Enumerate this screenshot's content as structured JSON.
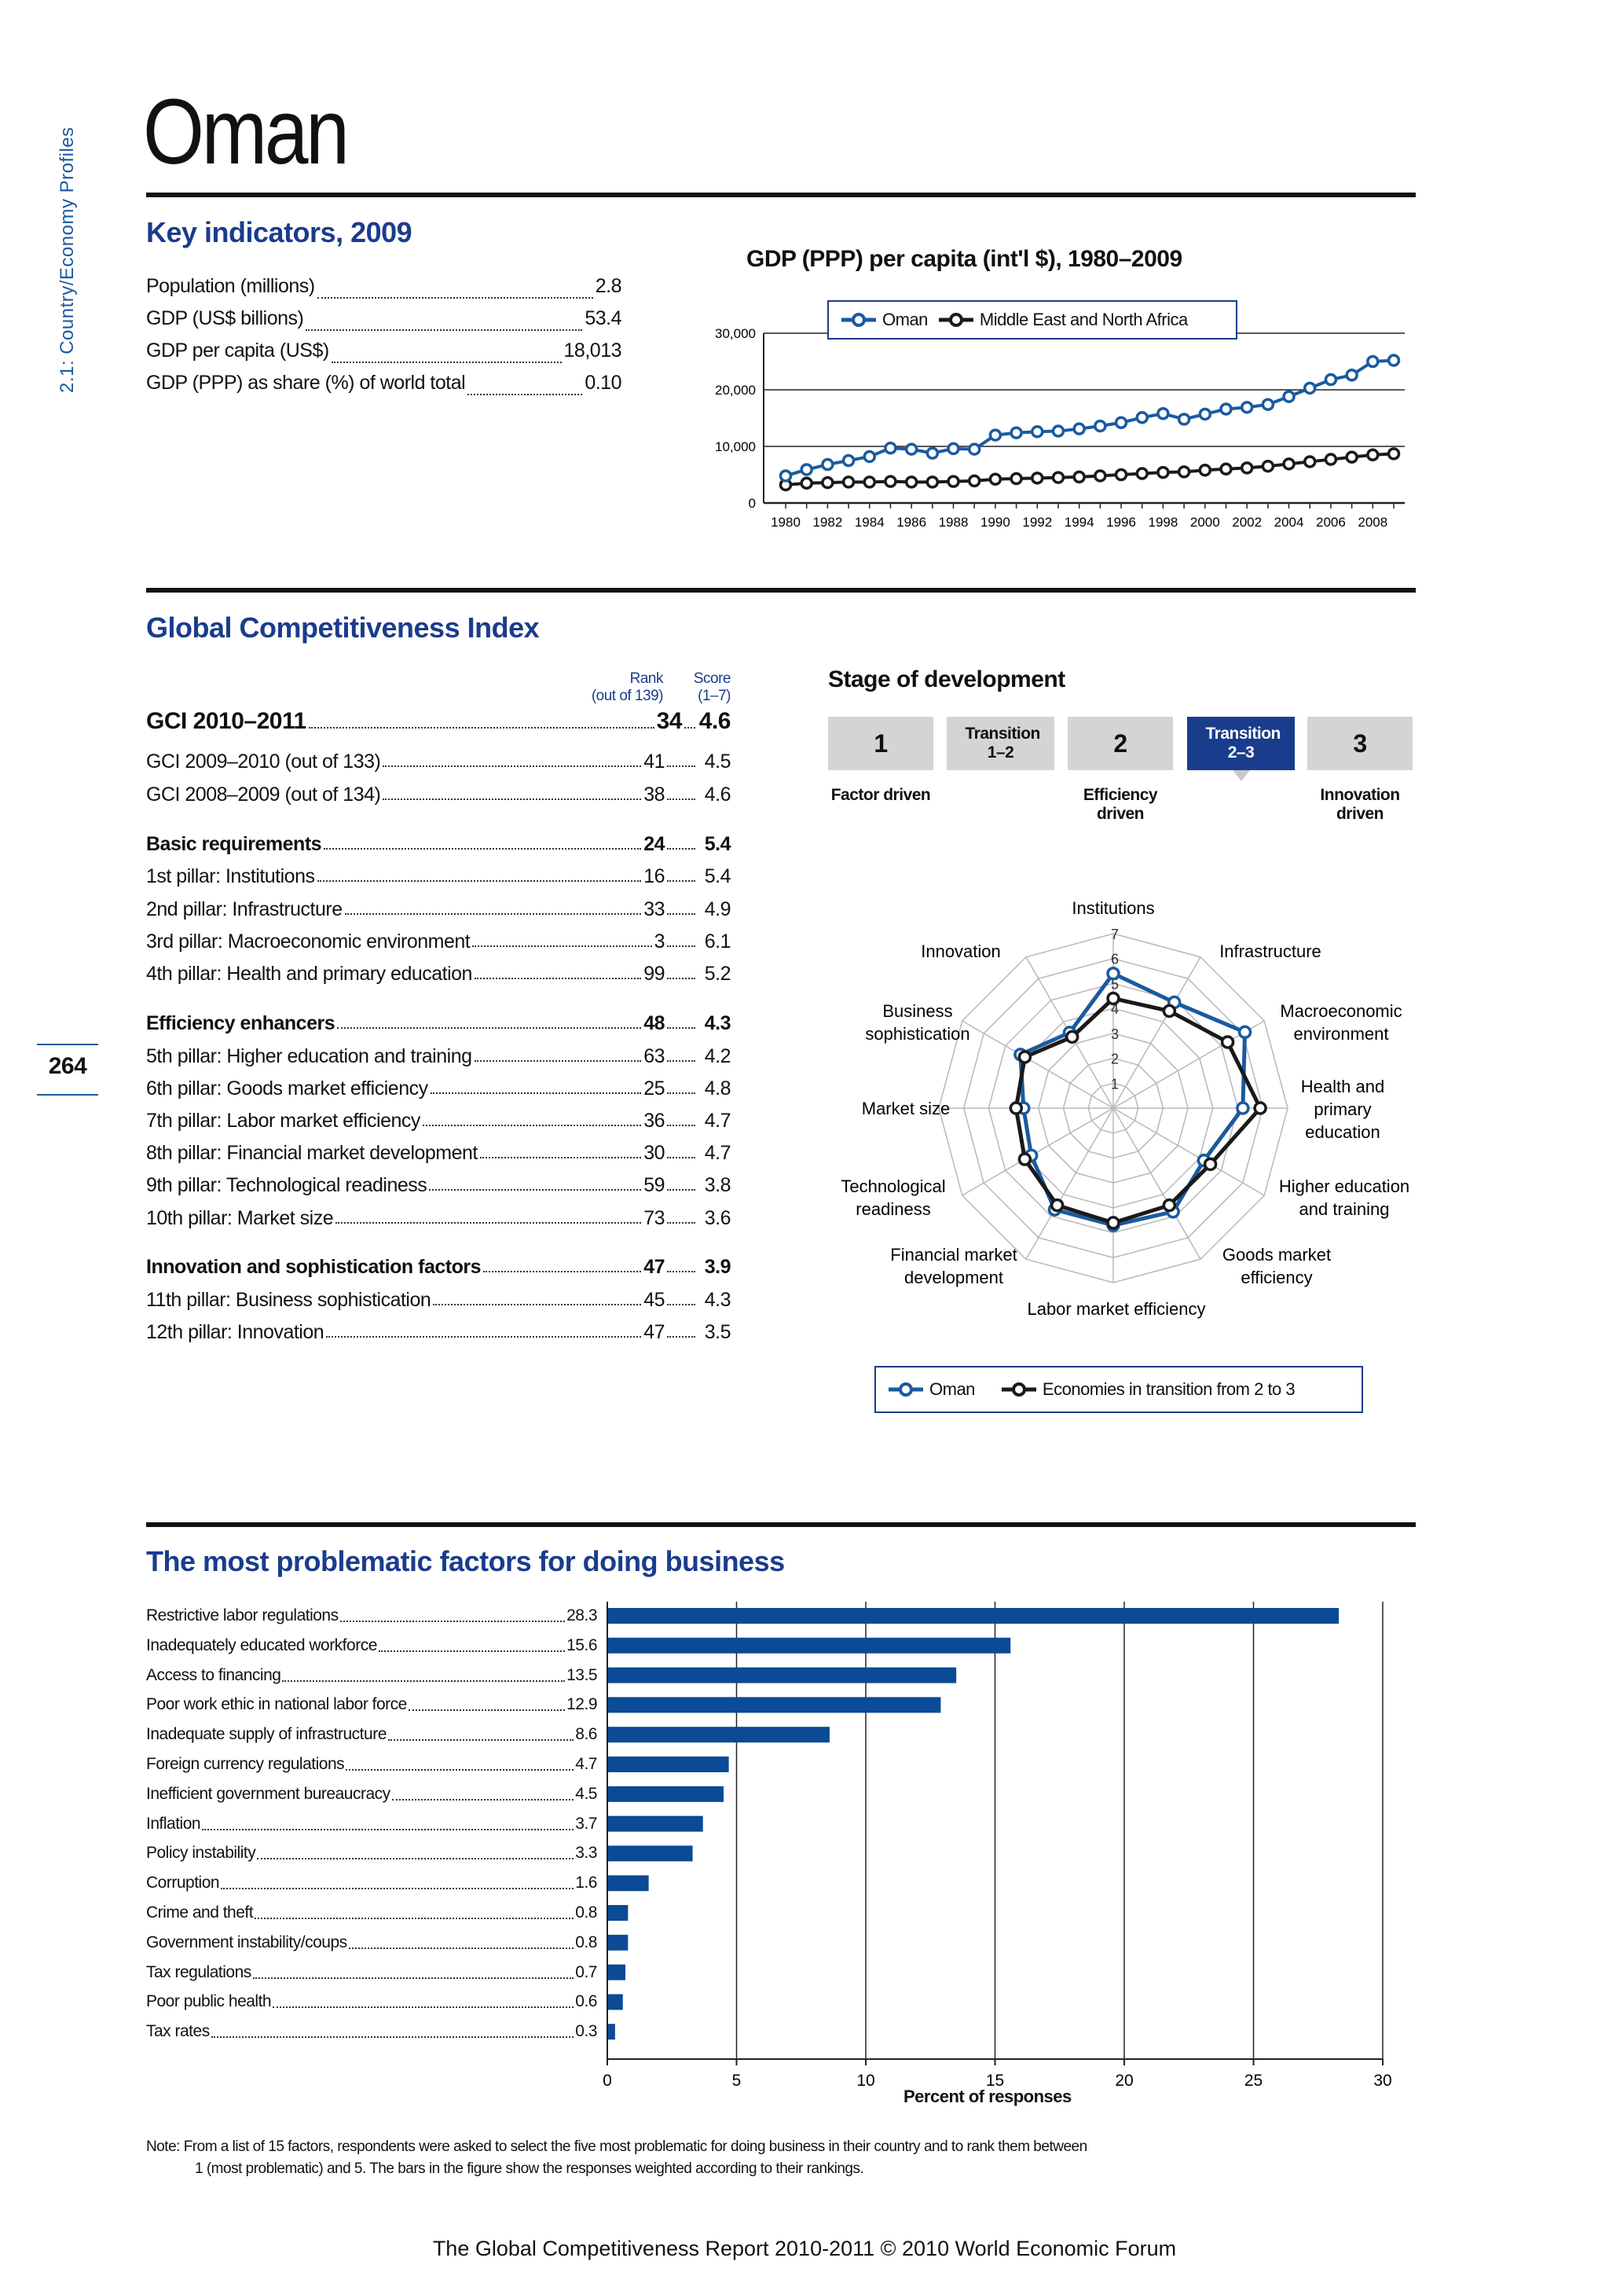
{
  "side_label": "2.1: Country/Economy Profiles",
  "page_number": "264",
  "country": "Oman",
  "key_indicators": {
    "title": "Key indicators, 2009",
    "rows": [
      {
        "label": "Population (millions)",
        "value": "2.8"
      },
      {
        "label": "GDP (US$ billions)",
        "value": "53.4"
      },
      {
        "label": "GDP per capita (US$)",
        "value": "18,013"
      },
      {
        "label": "GDP (PPP) as share (%) of world total",
        "value": "0.10"
      }
    ]
  },
  "gdp_chart_title": "GDP (PPP) per capita (int'l $), 1980–2009",
  "gdp_legend": [
    "Oman",
    "Middle East and North Africa"
  ],
  "gci": {
    "title": "Global Competitiveness Index",
    "rank_header": [
      "Rank",
      "(out of 139)"
    ],
    "score_header": [
      "Score",
      "(1–7)"
    ],
    "rows": [
      {
        "label": "GCI 2010–2011",
        "rank": "34",
        "score": "4.6",
        "style": "main"
      },
      {
        "label": "GCI 2009–2010 (out of 133)",
        "rank": "41",
        "score": "4.5",
        "style": "normal"
      },
      {
        "label": "GCI 2008–2009 (out of 134)",
        "rank": "38",
        "score": "4.6",
        "style": "normal"
      },
      {
        "label": "Basic requirements",
        "rank": "24",
        "score": "5.4",
        "style": "bold"
      },
      {
        "label": "1st pillar: Institutions",
        "rank": "16",
        "score": "5.4",
        "style": "normal"
      },
      {
        "label": "2nd pillar: Infrastructure",
        "rank": "33",
        "score": "4.9",
        "style": "normal"
      },
      {
        "label": "3rd pillar: Macroeconomic environment",
        "rank": "3",
        "score": "6.1",
        "style": "normal"
      },
      {
        "label": "4th pillar: Health and primary education",
        "rank": "99",
        "score": "5.2",
        "style": "normal"
      },
      {
        "label": "Efficiency enhancers",
        "rank": "48",
        "score": "4.3",
        "style": "bold"
      },
      {
        "label": "5th pillar: Higher education and training",
        "rank": "63",
        "score": "4.2",
        "style": "normal"
      },
      {
        "label": "6th pillar: Goods market efficiency",
        "rank": "25",
        "score": "4.8",
        "style": "normal"
      },
      {
        "label": "7th pillar: Labor market efficiency",
        "rank": "36",
        "score": "4.7",
        "style": "normal"
      },
      {
        "label": "8th pillar: Financial market development",
        "rank": "30",
        "score": "4.7",
        "style": "normal"
      },
      {
        "label": "9th pillar: Technological readiness",
        "rank": "59",
        "score": "3.8",
        "style": "normal"
      },
      {
        "label": "10th pillar: Market size",
        "rank": "73",
        "score": "3.6",
        "style": "normal"
      },
      {
        "label": "Innovation and sophistication factors",
        "rank": "47",
        "score": "3.9",
        "style": "bold"
      },
      {
        "label": "11th pillar: Business sophistication",
        "rank": "45",
        "score": "4.3",
        "style": "normal"
      },
      {
        "label": "12th pillar: Innovation",
        "rank": "47",
        "score": "3.5",
        "style": "normal"
      }
    ]
  },
  "stage": {
    "title": "Stage of development",
    "boxes": [
      "1",
      "Transition 1–2",
      "2",
      "Transition 2–3",
      "3"
    ],
    "active_index": 3,
    "labels": [
      "Factor driven",
      "Efficiency driven",
      "Innovation driven"
    ]
  },
  "radar_legend": [
    "Oman",
    "Economies in transition from 2 to 3"
  ],
  "problems": {
    "title": "The most problematic factors for doing business",
    "xlabel": "Percent of responses",
    "note_lines": [
      "Note:  From a list of 15 factors, respondents were asked to select the five most problematic for doing business in their country and to rank them between",
      "1 (most problematic) and 5. The bars in the figure show the responses weighted according to their rankings."
    ]
  },
  "footer": "The Global Competitiveness Report 2010-2011 © 2010 World Economic Forum",
  "colors": {
    "oman": "#1a5aa0",
    "comparison": "#1a1a1a",
    "bar": "#0a4a96",
    "heading": "#1a3c8c"
  },
  "chart_data": [
    {
      "type": "line",
      "title": "GDP (PPP) per capita (int'l $), 1980–2009",
      "x": [
        1980,
        1981,
        1982,
        1983,
        1984,
        1985,
        1986,
        1987,
        1988,
        1989,
        1990,
        1991,
        1992,
        1993,
        1994,
        1995,
        1996,
        1997,
        1998,
        1999,
        2000,
        2001,
        2002,
        2003,
        2004,
        2005,
        2006,
        2007,
        2008,
        2009
      ],
      "x_tick_labels": [
        "1980",
        "1982",
        "1984",
        "1986",
        "1988",
        "1990",
        "1992",
        "1994",
        "1996",
        "1998",
        "2000",
        "2002",
        "2004",
        "2006",
        "2008"
      ],
      "y_tick_labels": [
        "0",
        "10,000",
        "20,000",
        "30,000"
      ],
      "ylim": [
        0,
        30000
      ],
      "series": [
        {
          "name": "Oman",
          "values": [
            4800,
            5900,
            6800,
            7500,
            8200,
            9700,
            9500,
            8800,
            9600,
            9500,
            12000,
            12400,
            12600,
            12700,
            13100,
            13600,
            14200,
            15100,
            15800,
            14800,
            15700,
            16600,
            16900,
            17400,
            18800,
            20300,
            21800,
            22600,
            25000,
            25200
          ]
        },
        {
          "name": "Middle East and North Africa",
          "values": [
            3200,
            3500,
            3600,
            3700,
            3700,
            3800,
            3700,
            3700,
            3800,
            3900,
            4200,
            4300,
            4400,
            4500,
            4600,
            4800,
            5000,
            5200,
            5400,
            5500,
            5800,
            6000,
            6200,
            6500,
            6900,
            7300,
            7700,
            8100,
            8500,
            8700
          ]
        }
      ]
    },
    {
      "type": "radar",
      "axes": [
        "Institutions",
        "Infrastructure",
        "Macroeconomic environment",
        "Health and primary education",
        "Higher education and training",
        "Goods market efficiency",
        "Labor market efficiency",
        "Financial market development",
        "Technological readiness",
        "Market size",
        "Business sophistication",
        "Innovation"
      ],
      "axis_label_lines": [
        [
          "Institutions"
        ],
        [
          "Infrastructure"
        ],
        [
          "Macroeconomic",
          "environment"
        ],
        [
          "Health and",
          "primary",
          "education"
        ],
        [
          "Higher education",
          "and training"
        ],
        [
          "Goods market",
          "efficiency"
        ],
        [
          "Labor market efficiency"
        ],
        [
          "Financial market",
          "development"
        ],
        [
          "Technological",
          "readiness"
        ],
        [
          "Market size"
        ],
        [
          "Business",
          "sophistication"
        ],
        [
          "Innovation"
        ]
      ],
      "scale_labels": [
        "1",
        "2",
        "3",
        "4",
        "5",
        "6",
        "7"
      ],
      "range": [
        1,
        7
      ],
      "series": [
        {
          "name": "Oman",
          "values": [
            5.4,
            4.9,
            6.1,
            5.2,
            4.2,
            4.8,
            4.7,
            4.7,
            3.8,
            3.6,
            4.3,
            3.5
          ]
        },
        {
          "name": "Economies in transition from 2 to 3",
          "values": [
            4.4,
            4.5,
            5.3,
            5.9,
            4.5,
            4.5,
            4.6,
            4.5,
            4.1,
            3.9,
            4.1,
            3.3
          ]
        }
      ]
    },
    {
      "type": "bar",
      "orientation": "horizontal",
      "categories": [
        "Restrictive labor regulations",
        "Inadequately educated workforce",
        "Access to financing",
        "Poor work ethic in national labor force",
        "Inadequate supply of infrastructure",
        "Foreign currency regulations",
        "Inefficient government bureaucracy",
        "Inflation",
        "Policy instability",
        "Corruption",
        "Crime and theft",
        "Government instability/coups",
        "Tax regulations",
        "Poor public health",
        "Tax rates"
      ],
      "values": [
        28.3,
        15.6,
        13.5,
        12.9,
        8.6,
        4.7,
        4.5,
        3.7,
        3.3,
        1.6,
        0.8,
        0.8,
        0.7,
        0.6,
        0.3
      ],
      "value_labels": [
        "28.3",
        "15.6",
        "13.5",
        "12.9",
        "8.6",
        "4.7",
        "4.5",
        "3.7",
        "3.3",
        "1.6",
        "0.8",
        "0.8",
        "0.7",
        "0.6",
        "0.3"
      ],
      "x_tick_labels": [
        "0",
        "5",
        "10",
        "15",
        "20",
        "25",
        "30"
      ],
      "xlim": [
        0,
        30
      ],
      "xlabel": "Percent of responses"
    }
  ]
}
